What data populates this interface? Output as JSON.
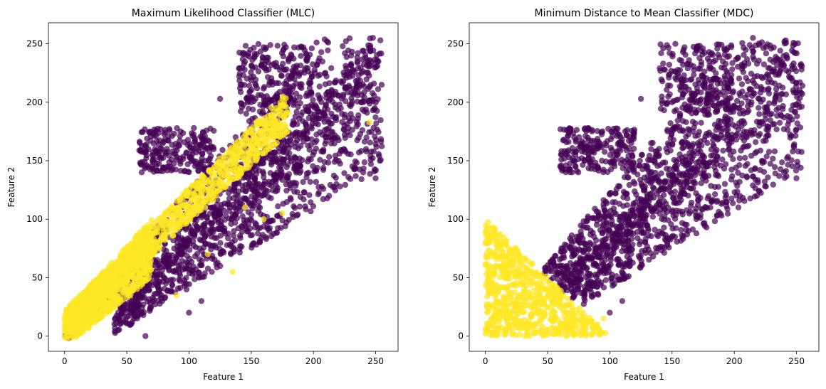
{
  "chart_data": [
    {
      "type": "scatter",
      "title": "Maximum Likelihood Classifier (MLC)",
      "xlabel": "Feature 1",
      "ylabel": "Feature 2",
      "xlim": [
        -13,
        268
      ],
      "ylim": [
        -13,
        268
      ],
      "xticks": [
        0,
        50,
        100,
        150,
        200,
        250
      ],
      "yticks": [
        0,
        50,
        100,
        150,
        200,
        250
      ],
      "grid": false,
      "legend": "none",
      "colormap": "viridis",
      "series": [
        {
          "class": 0,
          "color": "#440154",
          "opacity": 0.7,
          "regions": [
            {
              "shape": "band",
              "x": [
                0,
                255
              ],
              "center_slope": 1.0,
              "center_offset": 0,
              "half_width": [
                6,
                60
              ]
            },
            {
              "shape": "band",
              "x": [
                40,
                255
              ],
              "center_slope": 0.9,
              "center_offset": -25,
              "half_width": [
                10,
                60
              ]
            },
            {
              "shape": "blob",
              "x": [
                140,
                200
              ],
              "y": [
                190,
                250
              ]
            },
            {
              "shape": "blob",
              "x": [
                60,
                120
              ],
              "y": [
                140,
                178
              ]
            }
          ],
          "outliers": [
            [
              65,
              0
            ],
            [
              160,
              247
            ],
            [
              180,
              235
            ],
            [
              230,
              190
            ],
            [
              240,
              140
            ],
            [
              250,
              135
            ],
            [
              210,
              170
            ],
            [
              150,
              200
            ],
            [
              125,
              203
            ],
            [
              100,
              20
            ],
            [
              110,
              30
            ]
          ]
        },
        {
          "class": 1,
          "color": "#fde725",
          "opacity": 0.7,
          "regions": [
            {
              "shape": "band",
              "x": [
                0,
                180
              ],
              "center_slope": 1.0,
              "center_offset": 12,
              "half_width": [
                10,
                18
              ]
            },
            {
              "shape": "band",
              "x": [
                0,
                70
              ],
              "center_slope": 1.0,
              "center_offset": 5,
              "half_width": [
                15,
                25
              ]
            }
          ],
          "outliers": [
            [
              245,
              183
            ],
            [
              145,
              110
            ],
            [
              160,
              100
            ],
            [
              135,
              55
            ],
            [
              115,
              70
            ],
            [
              175,
              105
            ],
            [
              90,
              35
            ]
          ]
        }
      ]
    },
    {
      "type": "scatter",
      "title": "Minimum Distance to Mean Classifier (MDC)",
      "xlabel": "Feature 1",
      "ylabel": "Feature 2",
      "xlim": [
        -13,
        268
      ],
      "ylim": [
        -13,
        268
      ],
      "xticks": [
        0,
        50,
        100,
        150,
        200,
        250
      ],
      "yticks": [
        0,
        50,
        100,
        150,
        200,
        250
      ],
      "grid": false,
      "legend": "none",
      "colormap": "viridis",
      "series": [
        {
          "class": 0,
          "color": "#440154",
          "opacity": 0.7,
          "regions": [
            {
              "shape": "band",
              "x": [
                20,
                255
              ],
              "center_slope": 1.0,
              "center_offset": 0,
              "half_width": [
                6,
                60
              ]
            },
            {
              "shape": "band",
              "x": [
                40,
                255
              ],
              "center_slope": 0.9,
              "center_offset": -25,
              "half_width": [
                10,
                60
              ]
            },
            {
              "shape": "blob",
              "x": [
                140,
                200
              ],
              "y": [
                190,
                250
              ]
            },
            {
              "shape": "blob",
              "x": [
                60,
                120
              ],
              "y": [
                140,
                178
              ]
            }
          ],
          "boundary": "x + y > 100",
          "outliers": [
            [
              160,
              247
            ],
            [
              180,
              235
            ],
            [
              230,
              190
            ],
            [
              240,
              140
            ],
            [
              250,
              135
            ],
            [
              210,
              170
            ],
            [
              150,
              200
            ],
            [
              125,
              203
            ],
            [
              110,
              30
            ],
            [
              100,
              20
            ]
          ]
        },
        {
          "class": 1,
          "color": "#fde725",
          "opacity": 0.7,
          "regions": [
            {
              "shape": "triangle",
              "vertices": [
                [
                  0,
                  0
                ],
                [
                  100,
                  0
                ],
                [
                  0,
                  100
                ]
              ]
            }
          ],
          "outliers": [
            [
              65,
              0
            ],
            [
              95,
              15
            ],
            [
              90,
              10
            ],
            [
              75,
              5
            ]
          ]
        }
      ]
    }
  ]
}
